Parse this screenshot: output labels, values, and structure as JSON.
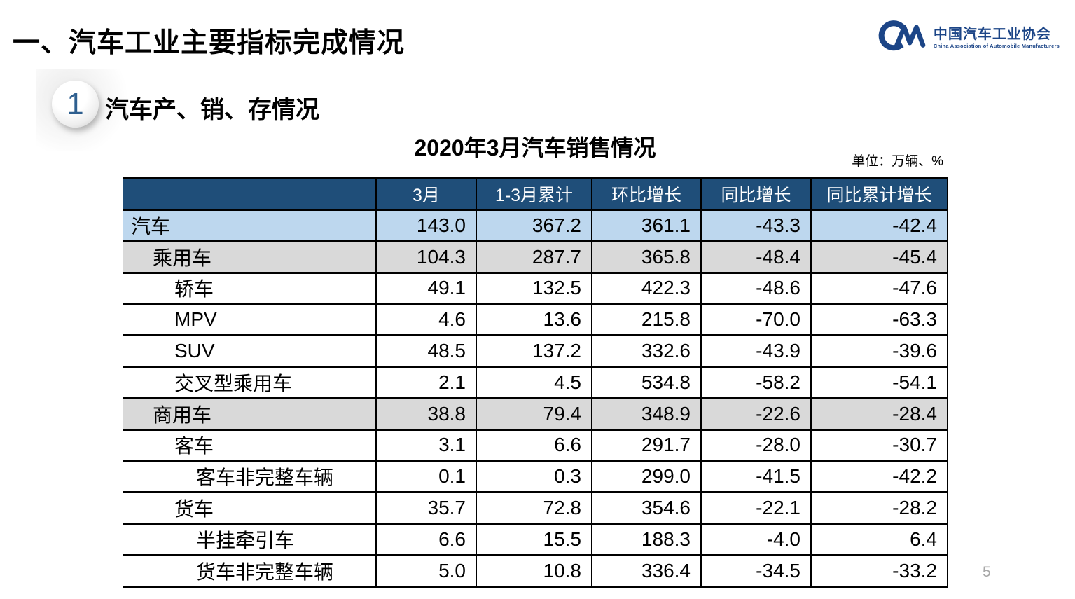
{
  "page": {
    "title": "一、汽车工业主要指标完成情况",
    "page_number": "5"
  },
  "logo": {
    "monogram": "CM",
    "name_zh": "中国汽车工业协会",
    "name_en": "China Association of Automobile Manufacturers"
  },
  "section": {
    "index": "1",
    "title": "汽车产、销、存情况"
  },
  "table": {
    "title": "2020年3月汽车销售情况",
    "unit_note": "单位：万辆、%",
    "columns": [
      "",
      "3月",
      "1-3月累计",
      "环比增长",
      "同比增长",
      "同比累计增长"
    ],
    "rows": [
      {
        "label": "汽车",
        "indent": 0,
        "highlight": "blue",
        "values": [
          "143.0",
          "367.2",
          "361.1",
          "-43.3",
          "-42.4"
        ]
      },
      {
        "label": "乘用车",
        "indent": 1,
        "highlight": "gray",
        "values": [
          "104.3",
          "287.7",
          "365.8",
          "-48.4",
          "-45.4"
        ]
      },
      {
        "label": "轿车",
        "indent": 2,
        "highlight": "none",
        "values": [
          "49.1",
          "132.5",
          "422.3",
          "-48.6",
          "-47.6"
        ]
      },
      {
        "label": "MPV",
        "indent": 2,
        "highlight": "none",
        "values": [
          "4.6",
          "13.6",
          "215.8",
          "-70.0",
          "-63.3"
        ]
      },
      {
        "label": "SUV",
        "indent": 2,
        "highlight": "none",
        "values": [
          "48.5",
          "137.2",
          "332.6",
          "-43.9",
          "-39.6"
        ]
      },
      {
        "label": "交叉型乘用车",
        "indent": 2,
        "highlight": "none",
        "values": [
          "2.1",
          "4.5",
          "534.8",
          "-58.2",
          "-54.1"
        ]
      },
      {
        "label": "商用车",
        "indent": 1,
        "highlight": "gray",
        "values": [
          "38.8",
          "79.4",
          "348.9",
          "-22.6",
          "-28.4"
        ]
      },
      {
        "label": "客车",
        "indent": 2,
        "highlight": "none",
        "values": [
          "3.1",
          "6.6",
          "291.7",
          "-28.0",
          "-30.7"
        ]
      },
      {
        "label": "客车非完整车辆",
        "indent": 3,
        "highlight": "none",
        "values": [
          "0.1",
          "0.3",
          "299.0",
          "-41.5",
          "-42.2"
        ]
      },
      {
        "label": "货车",
        "indent": 2,
        "highlight": "none",
        "values": [
          "35.7",
          "72.8",
          "354.6",
          "-22.1",
          "-28.2"
        ]
      },
      {
        "label": "半挂牵引车",
        "indent": 3,
        "highlight": "none",
        "values": [
          "6.6",
          "15.5",
          "188.3",
          "-4.0",
          "6.4"
        ]
      },
      {
        "label": "货车非完整车辆",
        "indent": 3,
        "highlight": "none",
        "values": [
          "5.0",
          "10.8",
          "336.4",
          "-34.5",
          "-33.2"
        ]
      }
    ]
  },
  "colors": {
    "accent": "#1C4587",
    "header_bg": "#1F4E79",
    "row_blue": "#BDD7EE",
    "row_gray": "#D9D9D9"
  }
}
